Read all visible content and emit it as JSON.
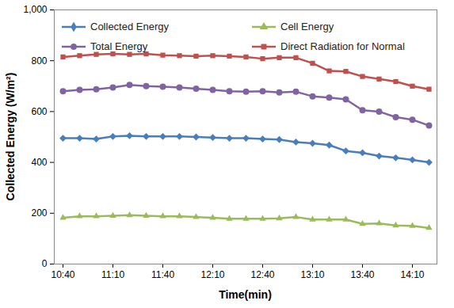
{
  "chart_data": {
    "type": "line",
    "x_label": "Time(min)",
    "y_label": "Collected Energy (W/m²)",
    "categories": [
      "10:40",
      null,
      null,
      "11:10",
      null,
      null,
      "11:40",
      null,
      null,
      "12:10",
      null,
      null,
      "12:40",
      null,
      null,
      "13:10",
      null,
      null,
      "13:40",
      null,
      null,
      "14:10",
      null
    ],
    "series": [
      {
        "name": "Collected Energy",
        "color": "#4a7ebb",
        "marker": "diamond",
        "values": [
          495,
          495,
          492,
          502,
          505,
          502,
          502,
          502,
          500,
          498,
          495,
          495,
          492,
          490,
          480,
          475,
          468,
          445,
          438,
          425,
          418,
          410,
          400
        ]
      },
      {
        "name": "Cell Energy",
        "color": "#9bbb59",
        "marker": "triangle",
        "values": [
          182,
          188,
          188,
          190,
          192,
          190,
          188,
          188,
          185,
          182,
          178,
          178,
          178,
          180,
          185,
          175,
          175,
          175,
          158,
          160,
          152,
          150,
          142
        ]
      },
      {
        "name": "Total Energy",
        "color": "#8064a2",
        "marker": "circle",
        "values": [
          680,
          685,
          688,
          695,
          705,
          700,
          698,
          695,
          690,
          685,
          680,
          678,
          680,
          675,
          678,
          660,
          655,
          648,
          605,
          600,
          578,
          568,
          545
        ]
      },
      {
        "name": "Direct Radiation for Normal",
        "color": "#c0504d",
        "marker": "square",
        "values": [
          815,
          820,
          825,
          827,
          825,
          827,
          822,
          820,
          818,
          820,
          818,
          815,
          808,
          812,
          812,
          790,
          760,
          758,
          738,
          728,
          718,
          700,
          688
        ]
      }
    ],
    "ylim": [
      0,
      1000
    ],
    "yticks": [
      0,
      200,
      400,
      600,
      800,
      1000
    ],
    "grid": false,
    "legend": "top"
  }
}
